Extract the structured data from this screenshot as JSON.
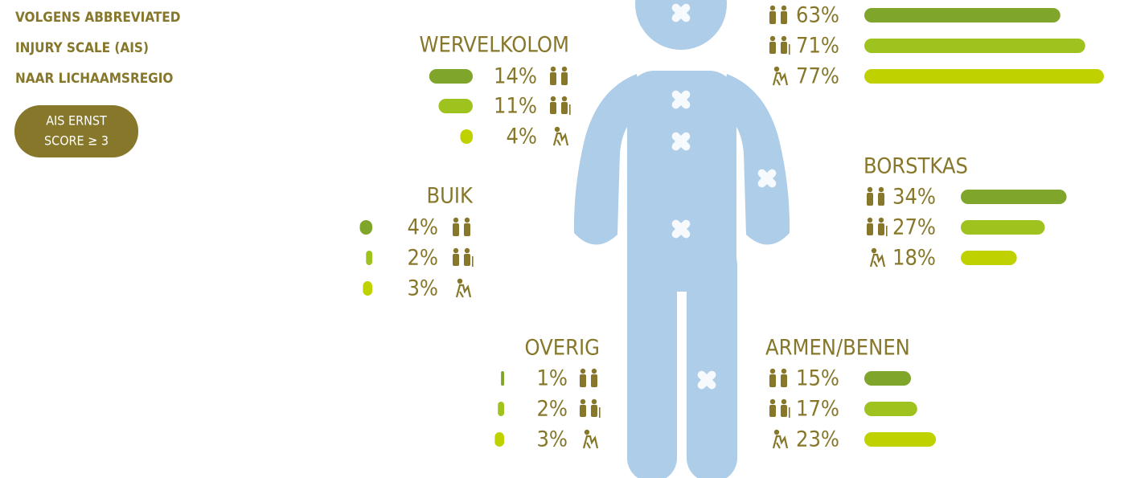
{
  "header": {
    "lines": [
      "VOLGENS ABBREVIATED",
      "INJURY SCALE (AIS)",
      "NAAR LICHAAMSREGIO"
    ]
  },
  "badge": {
    "lines": [
      "AIS ERNST",
      "SCORE ≥ 3"
    ]
  },
  "chart_data": [
    {
      "type": "bar",
      "values": [
        63,
        71,
        77
      ],
      "value_labels": [
        "63%",
        "71%",
        "77%"
      ],
      "colors": [
        "#7fa52b",
        "#9fc31e",
        "#bfd200"
      ]
    },
    {
      "type": "bar",
      "title": "WERVELKOLOM",
      "values": [
        14,
        11,
        4
      ],
      "value_labels": [
        "14%",
        "11%",
        "4%"
      ],
      "colors": [
        "#7fa52b",
        "#9fc31e",
        "#bfd200"
      ]
    },
    {
      "type": "bar",
      "title": "BORSTKAS",
      "values": [
        34,
        27,
        18
      ],
      "value_labels": [
        "34%",
        "27%",
        "18%"
      ],
      "colors": [
        "#7fa52b",
        "#9fc31e",
        "#bfd200"
      ]
    },
    {
      "type": "bar",
      "title": "BUIK",
      "values": [
        4,
        2,
        3
      ],
      "value_labels": [
        "4%",
        "2%",
        "3%"
      ],
      "colors": [
        "#7fa52b",
        "#9fc31e",
        "#bfd200"
      ]
    },
    {
      "type": "bar",
      "title": "OVERIG",
      "values": [
        1,
        2,
        3
      ],
      "value_labels": [
        "1%",
        "2%",
        "3%"
      ],
      "colors": [
        "#7fa52b",
        "#9fc31e",
        "#bfd200"
      ]
    },
    {
      "type": "bar",
      "title": "ARMEN/BENEN",
      "values": [
        15,
        17,
        23
      ],
      "value_labels": [
        "15%",
        "17%",
        "23%"
      ],
      "colors": [
        "#7fa52b",
        "#9fc31e",
        "#bfd200"
      ]
    }
  ]
}
